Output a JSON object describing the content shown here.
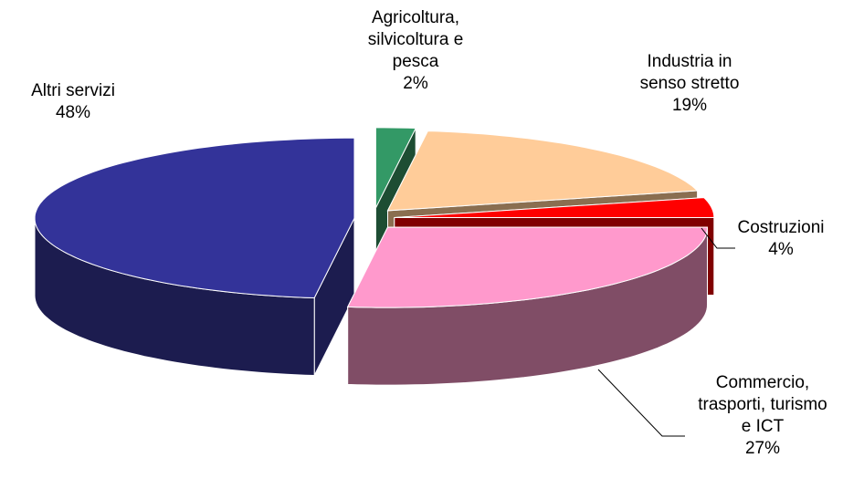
{
  "chart_data": {
    "type": "pie3d",
    "categories": [
      "Agricoltura, silvicoltura e pesca",
      "Industria in senso stretto",
      "Costruzioni",
      "Commercio, trasporti, turismo e ICT",
      "Altri servizi"
    ],
    "values": [
      2,
      19,
      4,
      27,
      48
    ],
    "value_labels": [
      "2%",
      "19%",
      "4%",
      "27%",
      "48%"
    ],
    "colors": [
      "#339966",
      "#ffcc99",
      "#ff0000",
      "#ff99cc",
      "#333399"
    ],
    "side_colors": [
      "#1d4d33",
      "#8a6e50",
      "#800000",
      "#804d66",
      "#1c1c4f"
    ]
  }
}
